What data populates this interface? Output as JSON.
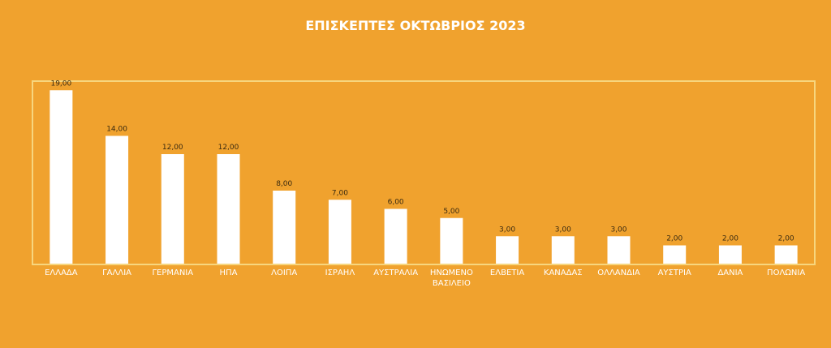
{
  "chart_data": {
    "type": "bar",
    "title": "ΕΠΙΣΚΕΠΤΕΣ ΟΚΤΩΒΡΙΟΣ 2023",
    "categories": [
      "ΕΛΛΑΔΑ",
      "ΓΑΛΛΙΑ",
      "ΓΕΡΜΑΝΙΑ",
      "ΗΠΑ",
      "ΛΟΙΠΑ",
      "ΙΣΡΑΗΛ",
      "ΑΥΣΤΡΑΛΙΑ",
      "ΗΝΩΜΕΝΟ ΒΑΣΙΛΕΙΟ",
      "ΕΛΒΕΤΙΑ",
      "ΚΑΝΑΔΑΣ",
      "ΟΛΛΑΝΔΙΑ",
      "ΑΥΣΤΡΙΑ",
      "ΔΑΝΙΑ",
      "ΠΟΛΩΝΙΑ"
    ],
    "values": [
      19,
      14,
      12,
      12,
      8,
      7,
      6,
      5,
      3,
      3,
      3,
      2,
      2,
      2
    ],
    "value_labels": [
      "19,00",
      "14,00",
      "12,00",
      "12,00",
      "8,00",
      "7,00",
      "6,00",
      "5,00",
      "3,00",
      "3,00",
      "3,00",
      "2,00",
      "2,00",
      "2,00"
    ],
    "color": "#ffffff",
    "ylim": [
      0,
      20
    ]
  }
}
